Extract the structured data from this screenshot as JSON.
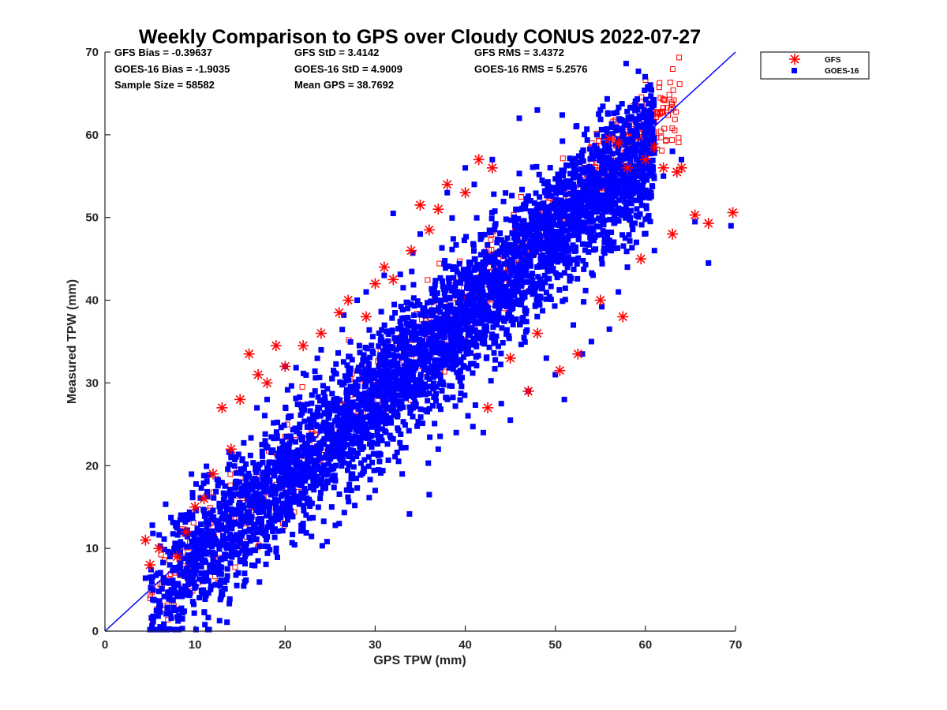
{
  "chart_data": {
    "type": "scatter",
    "title": "Weekly Comparison to GPS over Cloudy CONUS 2022-07-27",
    "xlabel": "GPS TPW (mm)",
    "ylabel": "Measured TPW (mm)",
    "xlim": [
      0,
      70
    ],
    "ylim": [
      0,
      70
    ],
    "xticks": [
      "0",
      "10",
      "20",
      "30",
      "40",
      "50",
      "60",
      "70"
    ],
    "yticks": [
      "0",
      "10",
      "20",
      "30",
      "40",
      "50",
      "60",
      "70"
    ],
    "grid": false,
    "legend_position": "outside-top-right",
    "stats": [
      [
        "GFS Bias = -0.39637",
        "GFS StD = 3.4142",
        "GFS RMS = 3.4372"
      ],
      [
        "GOES-16 Bias = -1.9035",
        "GOES-16 StD = 4.9009",
        "GOES-16 RMS = 5.2576"
      ],
      [
        "Sample Size = 58582",
        "Mean GPS = 38.7692",
        ""
      ]
    ],
    "reference_line": {
      "label": "1:1",
      "x": [
        0,
        70
      ],
      "y": [
        0,
        70
      ],
      "color": "#0000ff"
    },
    "series": [
      {
        "name": "GOES-16",
        "marker": "square",
        "color": "#0000ff",
        "trend": {
          "slope": 0.98,
          "intercept": -1.15,
          "x_range": [
            5,
            70
          ]
        },
        "stats": {
          "bias": -1.9035,
          "std": 4.9009,
          "rms": 5.2576
        },
        "points": [
          [
            4.5,
            6.4
          ],
          [
            6,
            4.8
          ],
          [
            7,
            9.6
          ],
          [
            8,
            12.5
          ],
          [
            9,
            5.1
          ],
          [
            11,
            14.5
          ],
          [
            12,
            8.6
          ],
          [
            14,
            21
          ],
          [
            15,
            8.6
          ],
          [
            17,
            15.5
          ],
          [
            18,
            28
          ],
          [
            19,
            9.6
          ],
          [
            20,
            32
          ],
          [
            22,
            12.5
          ],
          [
            24,
            34
          ],
          [
            26,
            13
          ],
          [
            28,
            40
          ],
          [
            29,
            41
          ],
          [
            30,
            17
          ],
          [
            31,
            43
          ],
          [
            32,
            50.5
          ],
          [
            33,
            19
          ],
          [
            35,
            48
          ],
          [
            36,
            16.5
          ],
          [
            37,
            22
          ],
          [
            38,
            53
          ],
          [
            39,
            24
          ],
          [
            40,
            56
          ],
          [
            41,
            54
          ],
          [
            42,
            24
          ],
          [
            43,
            57
          ],
          [
            44,
            27.5
          ],
          [
            45,
            25.5
          ],
          [
            46,
            62
          ],
          [
            47,
            29
          ],
          [
            48,
            63
          ],
          [
            49,
            33
          ],
          [
            50,
            31
          ],
          [
            51,
            28
          ],
          [
            52,
            37
          ],
          [
            53,
            33.5
          ],
          [
            54,
            35
          ],
          [
            55,
            63
          ],
          [
            56,
            36.5
          ],
          [
            57,
            41
          ],
          [
            58,
            44
          ],
          [
            59,
            47
          ],
          [
            60,
            60
          ],
          [
            61,
            46
          ],
          [
            62,
            55
          ],
          [
            63,
            58
          ],
          [
            64,
            57
          ],
          [
            65.5,
            49.5
          ],
          [
            67,
            44.5
          ],
          [
            69.5,
            49
          ]
        ]
      },
      {
        "name": "GFS",
        "marker": "asterisk",
        "color": "#ff0000",
        "trend": {
          "slope": 1.02,
          "intercept": -0.9,
          "x_range": [
            5,
            64
          ]
        },
        "stats": {
          "bias": -0.39637,
          "std": 3.4142,
          "rms": 3.4372
        },
        "points": [
          [
            4.5,
            11
          ],
          [
            5,
            8
          ],
          [
            6,
            10
          ],
          [
            8,
            9
          ],
          [
            9,
            12
          ],
          [
            10,
            15
          ],
          [
            11,
            16
          ],
          [
            12,
            19
          ],
          [
            13,
            27
          ],
          [
            14,
            22
          ],
          [
            15,
            28
          ],
          [
            16,
            33.5
          ],
          [
            17,
            31
          ],
          [
            18,
            30
          ],
          [
            19,
            34.5
          ],
          [
            20,
            32
          ],
          [
            22,
            34.5
          ],
          [
            24,
            36
          ],
          [
            26,
            38.5
          ],
          [
            27,
            40
          ],
          [
            29,
            38
          ],
          [
            30,
            42
          ],
          [
            31,
            44
          ],
          [
            32,
            42.5
          ],
          [
            34,
            46
          ],
          [
            35,
            51.5
          ],
          [
            36,
            48.5
          ],
          [
            37,
            51
          ],
          [
            38,
            54
          ],
          [
            40,
            53
          ],
          [
            41.5,
            57
          ],
          [
            43,
            56
          ],
          [
            42.5,
            27
          ],
          [
            45,
            33
          ],
          [
            47,
            29
          ],
          [
            48,
            36
          ],
          [
            50.5,
            31.5
          ],
          [
            52.5,
            33.5
          ],
          [
            55,
            40
          ],
          [
            57.5,
            38
          ],
          [
            57,
            59
          ],
          [
            59.5,
            45
          ],
          [
            60,
            57
          ],
          [
            61,
            58.5
          ],
          [
            62,
            56
          ],
          [
            63,
            48
          ],
          [
            63.5,
            55.5
          ],
          [
            64,
            56
          ],
          [
            65.5,
            50.3
          ],
          [
            67,
            49.3
          ],
          [
            69.7,
            50.6
          ],
          [
            56,
            59.5
          ],
          [
            58,
            56
          ]
        ]
      }
    ]
  }
}
